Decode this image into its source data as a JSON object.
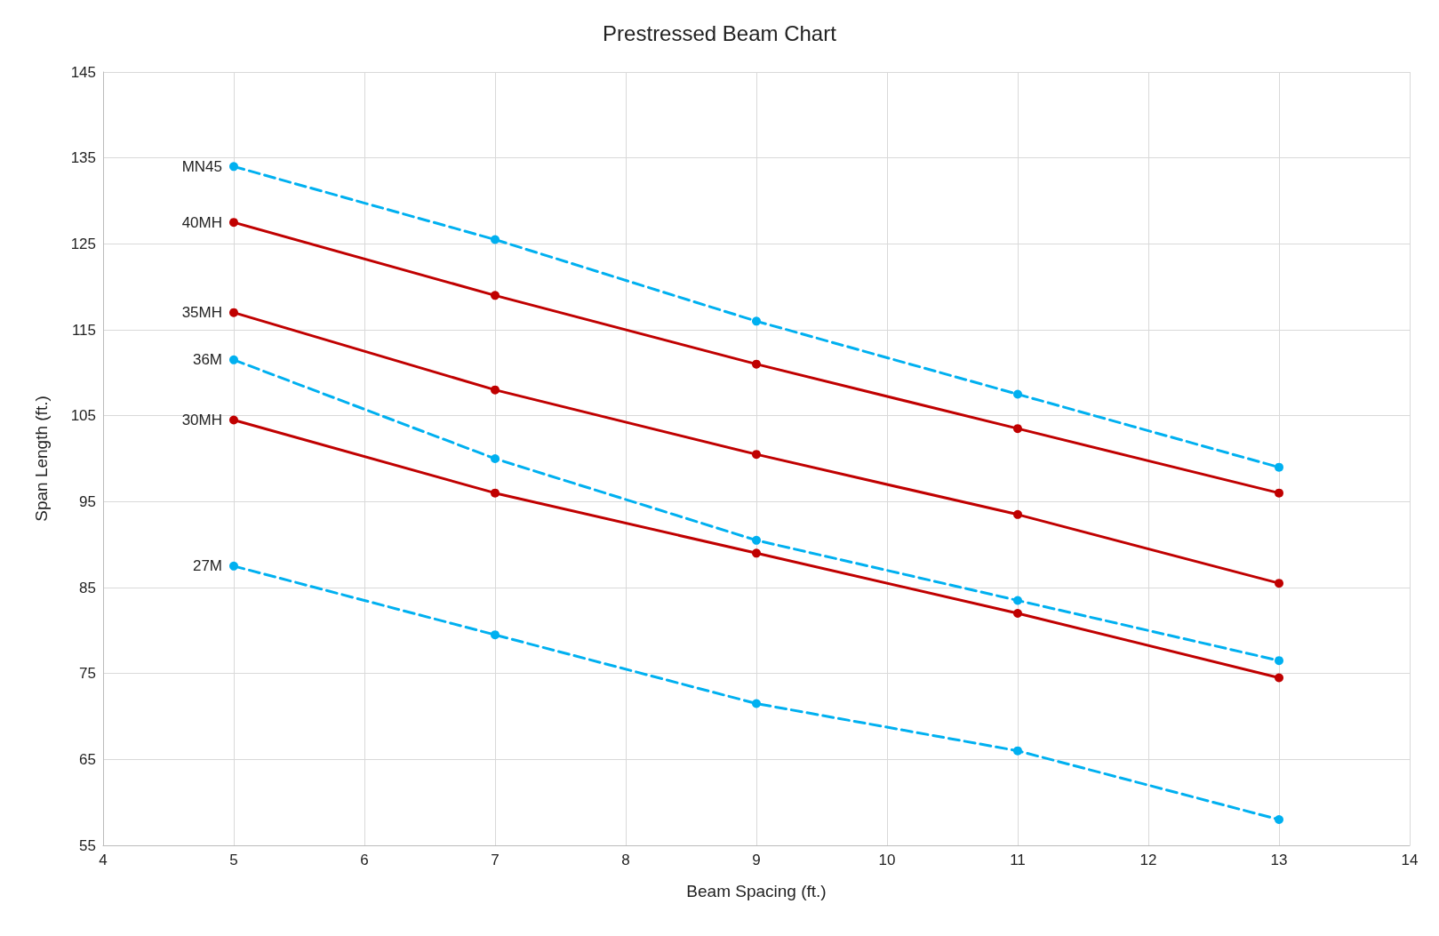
{
  "chart_data": {
    "type": "line",
    "title": "Prestressed Beam Chart",
    "xlabel": "Beam Spacing (ft.)",
    "ylabel": "Span Length (ft.)",
    "x": [
      5,
      7,
      9,
      11,
      13
    ],
    "series": [
      {
        "name": "MN45",
        "color": "#00b0f0",
        "line_style": "dashed",
        "values": [
          134,
          125.5,
          116,
          107.5,
          99
        ]
      },
      {
        "name": "40MH",
        "color": "#c00000",
        "line_style": "solid",
        "values": [
          127.5,
          119,
          111,
          103.5,
          96
        ]
      },
      {
        "name": "35MH",
        "color": "#c00000",
        "line_style": "solid",
        "values": [
          117,
          108,
          100.5,
          93.5,
          85.5
        ]
      },
      {
        "name": "36M",
        "color": "#00b0f0",
        "line_style": "dashed",
        "values": [
          111.5,
          100,
          90.5,
          83.5,
          76.5
        ]
      },
      {
        "name": "30MH",
        "color": "#c00000",
        "line_style": "solid",
        "values": [
          104.5,
          96,
          89,
          82,
          74.5
        ]
      },
      {
        "name": "27M",
        "color": "#00b0f0",
        "line_style": "dashed",
        "values": [
          87.5,
          79.5,
          71.5,
          66,
          58
        ]
      }
    ],
    "xlim": [
      4,
      14
    ],
    "xticks": [
      4,
      5,
      6,
      7,
      8,
      9,
      10,
      11,
      12,
      13,
      14
    ],
    "ylim": [
      55,
      145
    ],
    "yticks": [
      55,
      65,
      75,
      85,
      95,
      105,
      115,
      125,
      135,
      145
    ],
    "grid": true,
    "legend": false,
    "marker": "circle"
  }
}
